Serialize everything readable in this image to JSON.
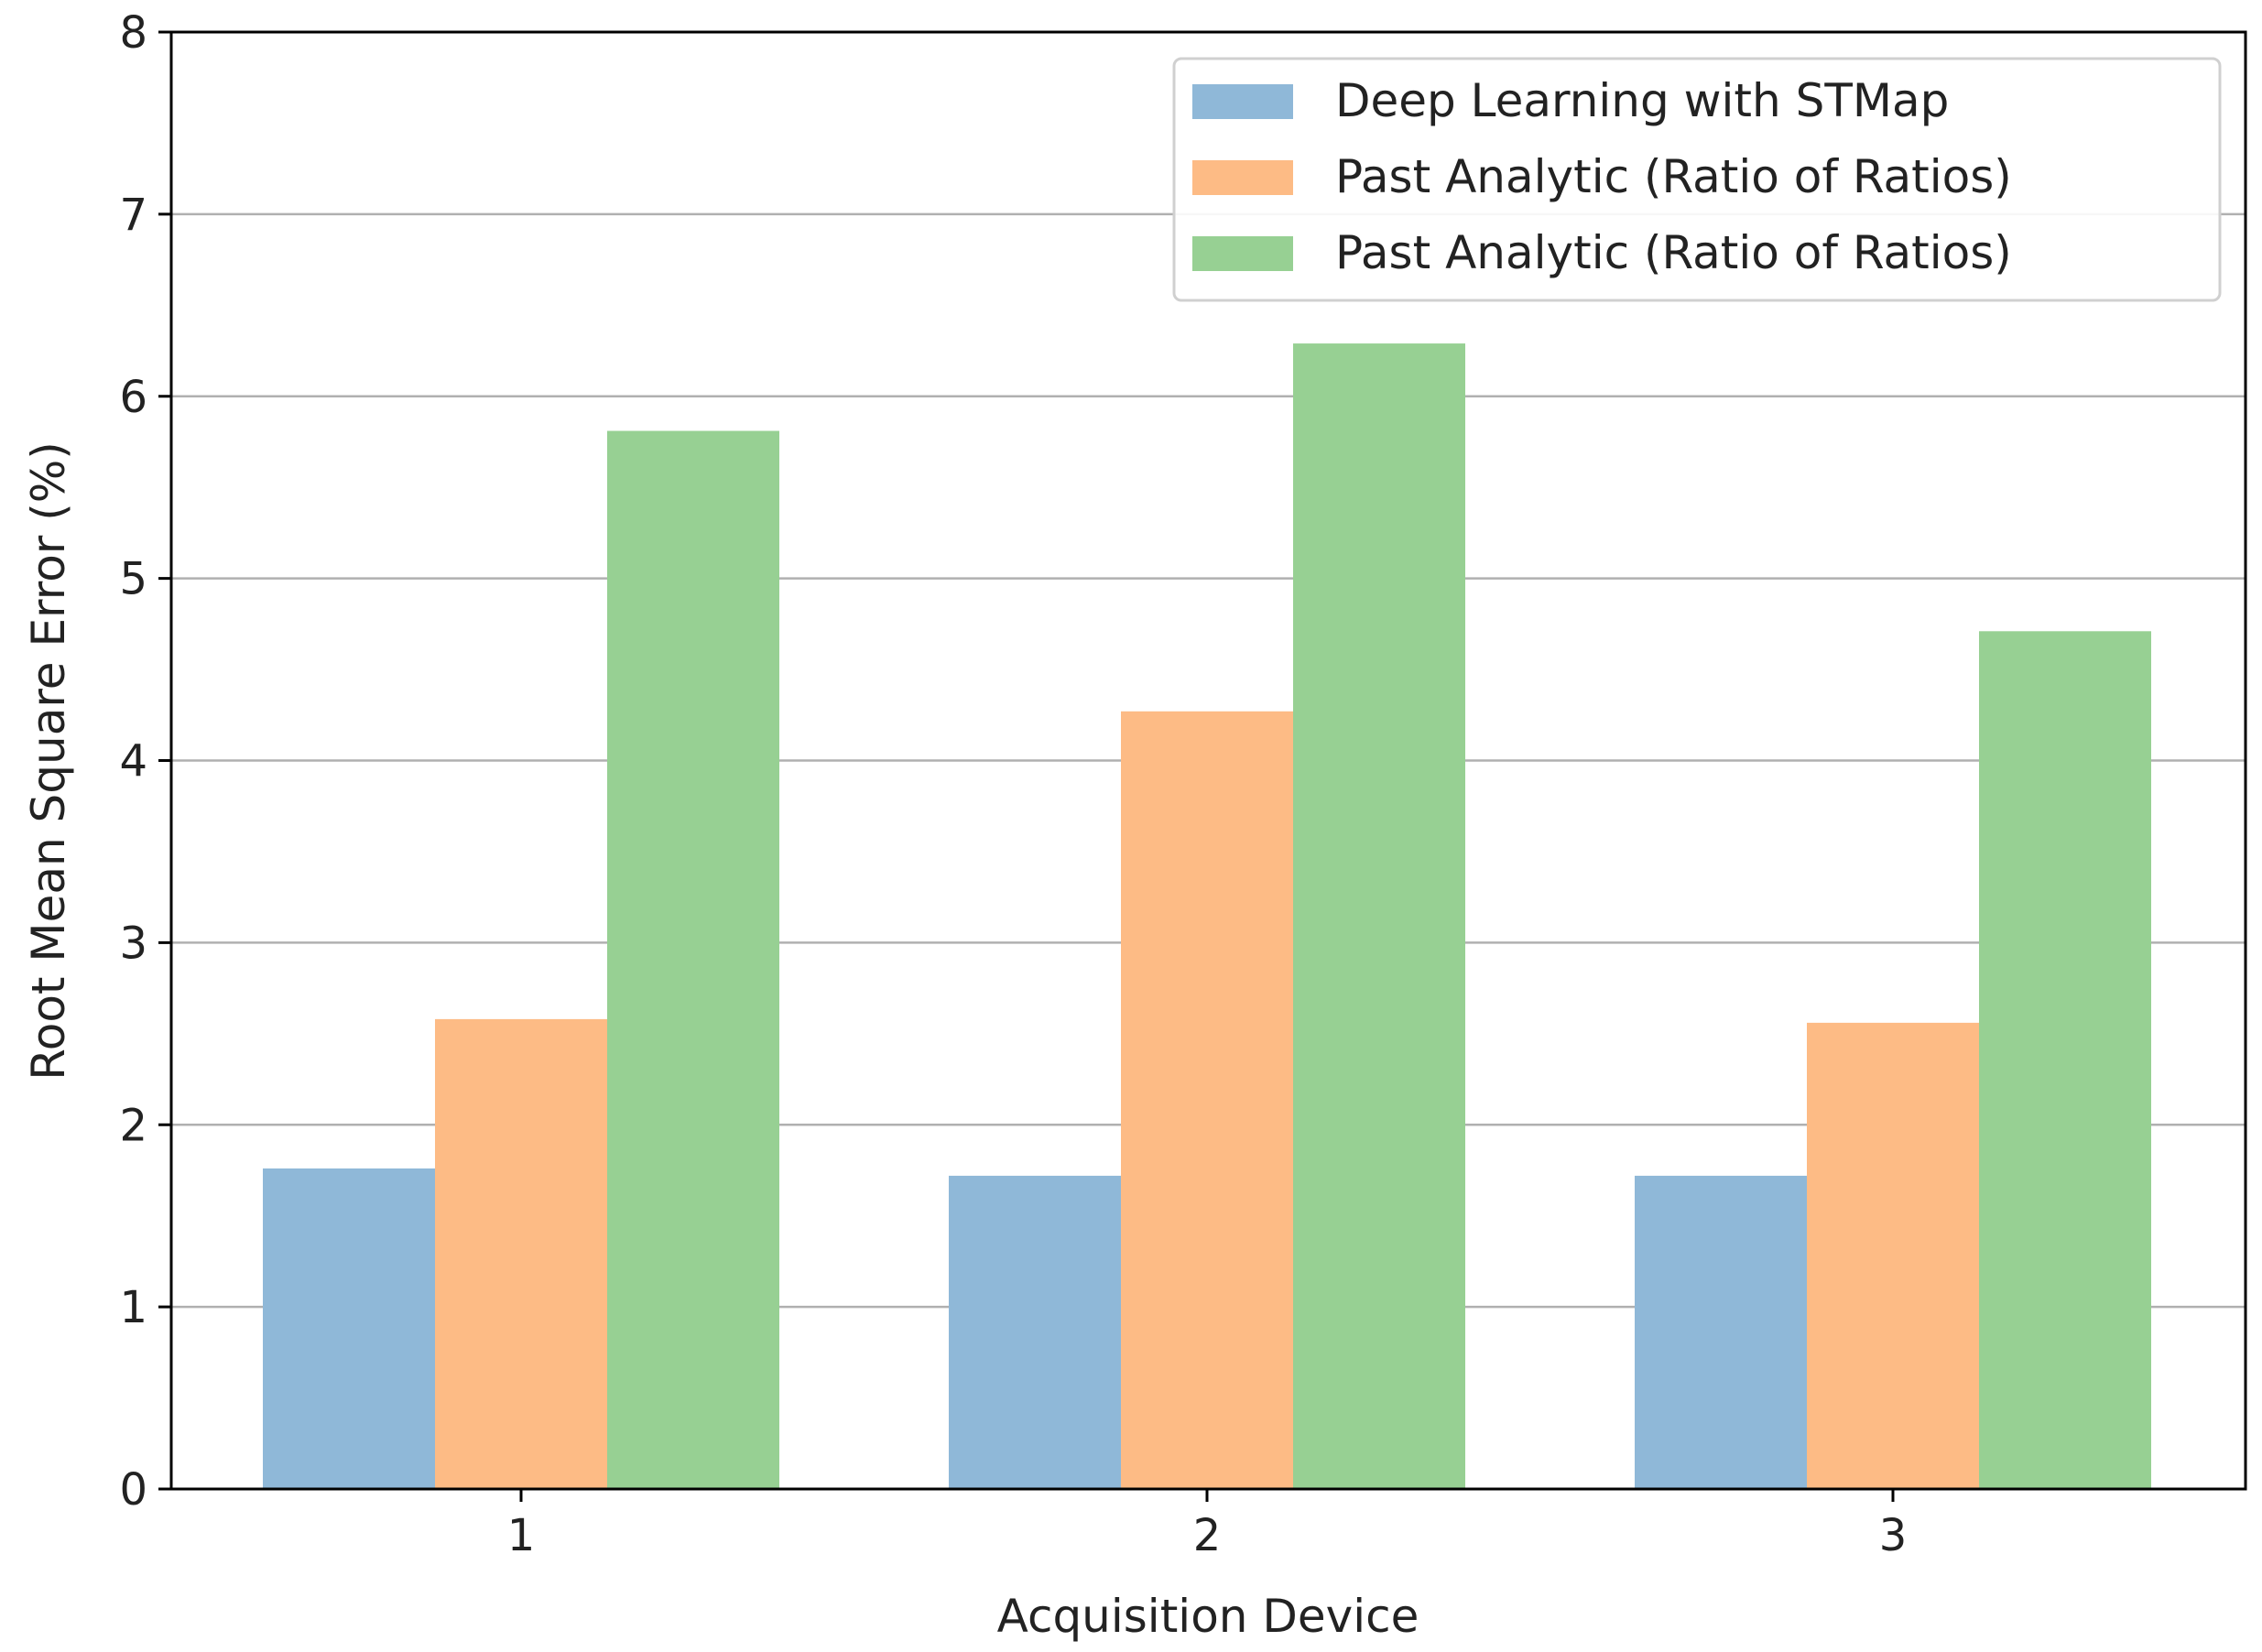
{
  "chart_data": {
    "type": "bar",
    "categories": [
      "1",
      "2",
      "3"
    ],
    "series": [
      {
        "name": "Deep Learning with STMap",
        "color": "#8fb8d8",
        "values": [
          1.76,
          1.72,
          1.72
        ]
      },
      {
        "name": "Past Analytic (Ratio of Ratios)",
        "color": "#fdbb85",
        "values": [
          2.58,
          4.27,
          2.56
        ]
      },
      {
        "name": "Past Analytic (Ratio of Ratios)",
        "color": "#97d093",
        "values": [
          5.81,
          6.29,
          4.71
        ]
      }
    ],
    "title": "",
    "xlabel": "Acquisition Device",
    "ylabel": "Root Mean Square Error (%)",
    "ylim": [
      0,
      8
    ],
    "yticks": [
      "0",
      "1",
      "2",
      "3",
      "4",
      "5",
      "6",
      "7",
      "8"
    ],
    "grid": "y",
    "legend_position": "top-right"
  }
}
